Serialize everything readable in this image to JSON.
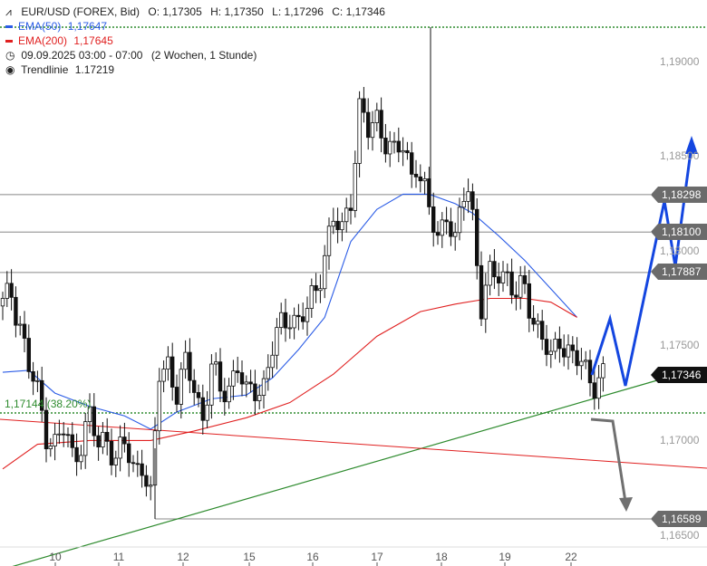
{
  "legend": {
    "instrument": "EUR/USD (FOREX, Bid)",
    "open": "O: 1,17305",
    "high": "H: 1,17350",
    "low": "L: 1,17296",
    "close": "C: 1,17346",
    "ema50_label": "EMA(50)",
    "ema50_value": "1,17647",
    "ema200_label": "EMA(200)",
    "ema200_value": "1,17645",
    "period": "09.09.2025 03:00 - 07:00",
    "period_detail": "(2 Wochen, 1 Stunde)",
    "trend_label": "Trendlinie",
    "trend_value": "1.17219"
  },
  "colors": {
    "ema50": "#2b5ce6",
    "ema200": "#e02020",
    "trend": "#2e8b2e",
    "tag": "#6b6b6b",
    "last_tag": "#111111",
    "arrow_up": "#1446e0",
    "arrow_down": "#707070"
  },
  "chart_data": {
    "type": "candlestick",
    "symbol": "EUR/USD",
    "timeframe": "1 hour",
    "x_labels": [
      "10",
      "11",
      "12",
      "15",
      "16",
      "17",
      "18",
      "19",
      "22"
    ],
    "y_ticks": [
      "1,19000",
      "1,18500",
      "1,18000",
      "1,17500",
      "1,17000",
      "1,16500"
    ],
    "ylim": [
      1.1645,
      1.1918
    ],
    "fib_label": "1,17144 (38.20%)",
    "fib_level": 1.17144,
    "top_dotted_level": 1.1919,
    "horizontal_levels": [
      1.18298,
      1.181,
      1.17887
    ],
    "support_level": 1.16589,
    "tags": [
      "1,18298",
      "1,18100",
      "1,17887",
      "1,17346",
      "1,16589"
    ],
    "last_price_tag": "1,17346",
    "close_path": [
      [
        0,
        1.1771
      ],
      [
        2,
        1.1778
      ],
      [
        4,
        1.1762
      ],
      [
        6,
        1.1738
      ],
      [
        8,
        1.1724
      ],
      [
        10,
        1.1705
      ],
      [
        12,
        1.1698
      ],
      [
        14,
        1.1705
      ],
      [
        16,
        1.1692
      ],
      [
        18,
        1.17
      ],
      [
        20,
        1.1712
      ],
      [
        22,
        1.1696
      ],
      [
        24,
        1.1703
      ],
      [
        26,
        1.169
      ],
      [
        28,
        1.1697
      ],
      [
        30,
        1.1685
      ],
      [
        32,
        1.169
      ],
      [
        34,
        1.1668
      ],
      [
        35,
        1.17
      ],
      [
        36,
        1.1735
      ],
      [
        38,
        1.1742
      ],
      [
        40,
        1.1725
      ],
      [
        42,
        1.1738
      ],
      [
        44,
        1.173
      ],
      [
        46,
        1.1712
      ],
      [
        48,
        1.1738
      ],
      [
        50,
        1.1725
      ],
      [
        52,
        1.173
      ],
      [
        54,
        1.174
      ],
      [
        56,
        1.1722
      ],
      [
        58,
        1.1728
      ],
      [
        60,
        1.173
      ],
      [
        62,
        1.1748
      ],
      [
        64,
        1.176
      ],
      [
        66,
        1.1768
      ],
      [
        68,
        1.1762
      ],
      [
        70,
        1.1768
      ],
      [
        72,
        1.178
      ],
      [
        74,
        1.18
      ],
      [
        76,
        1.1815
      ],
      [
        78,
        1.181
      ],
      [
        80,
        1.183
      ],
      [
        82,
        1.1875
      ],
      [
        84,
        1.1862
      ],
      [
        86,
        1.187
      ],
      [
        88,
        1.186
      ],
      [
        90,
        1.185
      ],
      [
        92,
        1.1855
      ],
      [
        94,
        1.1842
      ],
      [
        95,
        1.1848
      ],
      [
        96,
        1.1838
      ],
      [
        98,
        1.182
      ],
      [
        100,
        1.1808
      ],
      [
        102,
        1.1822
      ],
      [
        104,
        1.1802
      ],
      [
        106,
        1.183
      ],
      [
        107,
        1.1835
      ],
      [
        108,
        1.182
      ],
      [
        110,
        1.177
      ],
      [
        112,
        1.1785
      ],
      [
        114,
        1.179
      ],
      [
        116,
        1.1788
      ],
      [
        118,
        1.1775
      ],
      [
        120,
        1.178
      ],
      [
        122,
        1.1765
      ],
      [
        124,
        1.1755
      ],
      [
        126,
        1.174
      ],
      [
        128,
        1.1755
      ],
      [
        130,
        1.1748
      ],
      [
        132,
        1.1742
      ],
      [
        134,
        1.1735
      ],
      [
        136,
        1.1732
      ],
      [
        138,
        1.1735
      ]
    ],
    "ema50": [
      [
        0,
        1.1736
      ],
      [
        6,
        1.1737
      ],
      [
        12,
        1.1725
      ],
      [
        20,
        1.1718
      ],
      [
        28,
        1.1713
      ],
      [
        34,
        1.1706
      ],
      [
        40,
        1.1715
      ],
      [
        48,
        1.1722
      ],
      [
        56,
        1.1724
      ],
      [
        62,
        1.1733
      ],
      [
        68,
        1.1748
      ],
      [
        74,
        1.1765
      ],
      [
        80,
        1.1805
      ],
      [
        86,
        1.1822
      ],
      [
        92,
        1.183
      ],
      [
        98,
        1.183
      ],
      [
        104,
        1.1825
      ],
      [
        108,
        1.182
      ],
      [
        114,
        1.1808
      ],
      [
        120,
        1.1795
      ],
      [
        126,
        1.178
      ],
      [
        132,
        1.1765
      ]
    ],
    "ema200": [
      [
        0,
        1.1685
      ],
      [
        8,
        1.1698
      ],
      [
        20,
        1.17
      ],
      [
        34,
        1.17
      ],
      [
        44,
        1.1705
      ],
      [
        56,
        1.1712
      ],
      [
        66,
        1.172
      ],
      [
        76,
        1.1735
      ],
      [
        86,
        1.1755
      ],
      [
        96,
        1.1768
      ],
      [
        104,
        1.1772
      ],
      [
        112,
        1.1775
      ],
      [
        120,
        1.1775
      ],
      [
        126,
        1.1773
      ],
      [
        132,
        1.1765
      ]
    ],
    "trendline": [
      [
        0,
        1.1632
      ],
      [
        150,
        1.178
      ]
    ],
    "red_line": [
      [
        0,
        1.1711
      ],
      [
        150,
        1.1679
      ]
    ],
    "spike_high": 1.192,
    "spike_low": 1.1661,
    "projection_up": [
      [
        134,
        1.1735
      ],
      [
        138,
        1.176
      ],
      [
        142,
        1.174
      ],
      [
        148,
        1.1815
      ],
      [
        150,
        1.18
      ],
      [
        156,
        1.1868
      ]
    ],
    "projection_down": [
      [
        134,
        1.1724
      ],
      [
        138,
        1.1723
      ],
      [
        142,
        1.168
      ]
    ]
  }
}
